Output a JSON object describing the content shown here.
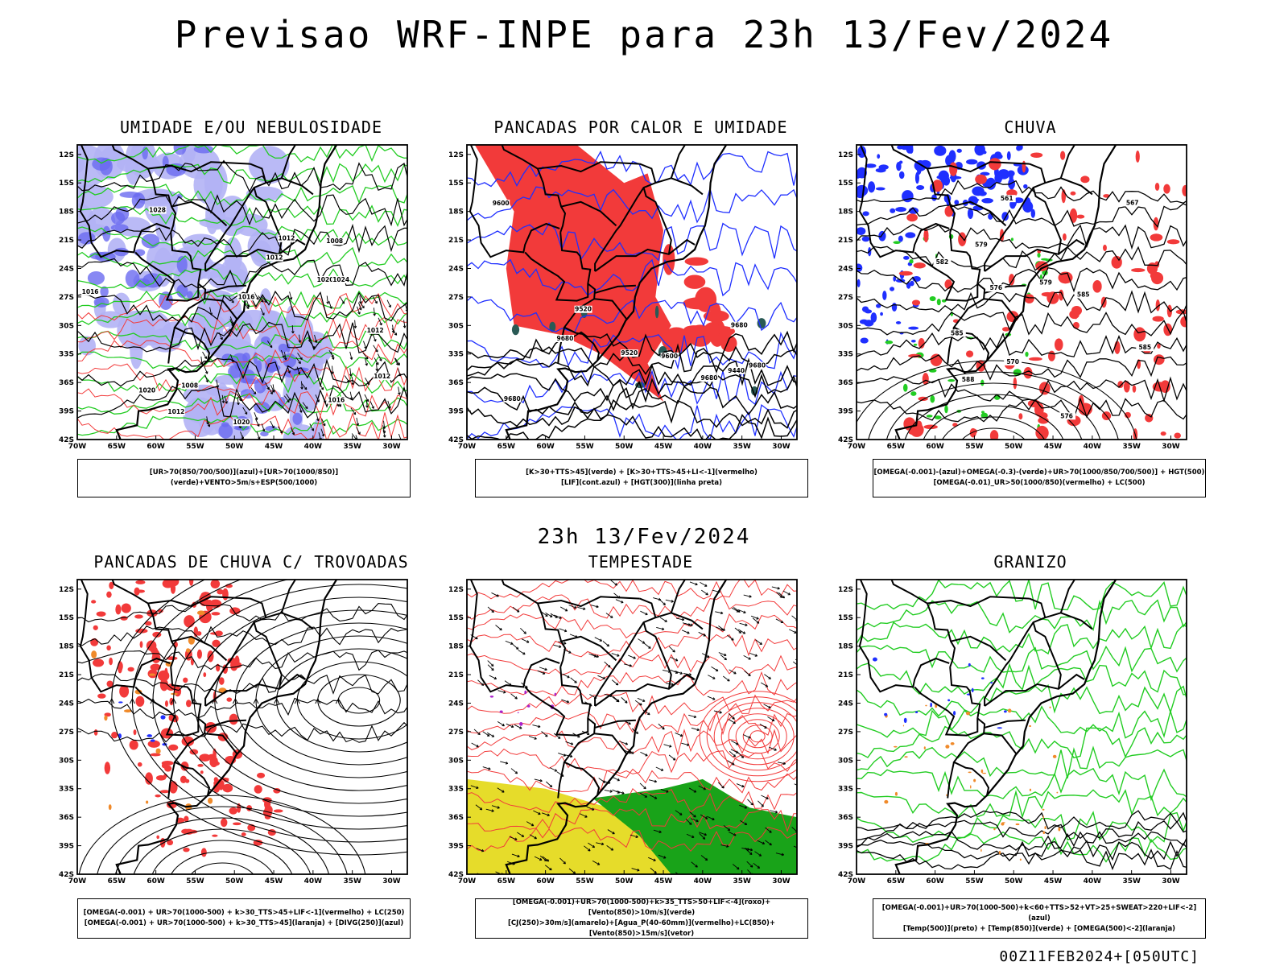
{
  "title": "Previsao WRF-INPE  para 23h 13/Fev/2024",
  "subtitle": "23h 13/Fev/2024",
  "footer": "00Z11FEB2024+[050UTC]",
  "axes": {
    "lat_labels": [
      "12S",
      "15S",
      "18S",
      "21S",
      "24S",
      "27S",
      "30S",
      "33S",
      "36S",
      "39S",
      "42S"
    ],
    "lon_labels": [
      "70W",
      "65W",
      "60W",
      "55W",
      "50W",
      "45W",
      "40W",
      "35W",
      "30W"
    ]
  },
  "colors": {
    "blue": "#1f2fff",
    "lightblue": "#b3b3f5",
    "green": "#22cc22",
    "red": "#f23a3a",
    "orange": "#f08a2a",
    "yellow": "#e6dc2a",
    "darkgreen": "#1a7a1a",
    "purple": "#aa22cc",
    "teal": "#2a5a55"
  },
  "panels": [
    {
      "title": "UMIDADE E/OU NEBULOSIDADE",
      "legend": [
        "[UR>70(850/700/500)](azul)+[UR>70(1000/850)](verde)+VENTO>5m/s+ESP(500/1000)"
      ],
      "contour_labels": [
        "1016",
        "1016",
        "1016",
        "1020",
        "1012",
        "1012",
        "1020",
        "1012",
        "1012",
        "1008",
        "1024",
        "1020",
        "1012",
        "1028",
        "1008"
      ]
    },
    {
      "title": "PANCADAS POR CALOR E UMIDADE",
      "legend": [
        "[K>30+TTS>45](verde) + [K>30+TTS>45+LI<-1](vermelho)",
        "[LIF](cont.azul) + [HGT(300)](linha preta)"
      ],
      "contour_labels": [
        "9680",
        "9680",
        "9680",
        "9680",
        "9680",
        "9600",
        "9520",
        "9440",
        "9600",
        "9520"
      ]
    },
    {
      "title": "CHUVA",
      "legend": [
        "[OMEGA(-0.001)-(azul)+OMEGA(-0.3)-(verde)+UR>70(1000/850/700/500)] + HGT(500)",
        "[OMEGA(-0.01)_UR>50(1000/850)(vermelho) + LC(500)"
      ],
      "contour_labels": [
        "588",
        "585",
        "585",
        "585",
        "582",
        "579",
        "576",
        "570",
        "567",
        "561",
        "579",
        "576"
      ]
    },
    {
      "title": "PANCADAS DE CHUVA C/ TROVOADAS",
      "legend": [
        "[OMEGA(-0.001) + UR>70(1000-500) + k>30_TTS>45+LIF<-1](vermelho) + LC(250)",
        "[OMEGA(-0.001) + UR>70(1000-500) + k>30_TTS>45](laranja) + [DIVG(250)](azul)"
      ],
      "contour_labels": []
    },
    {
      "title": "TEMPESTADE",
      "legend": [
        "[OMEGA(-0.001)+UR>70(1000-500)+k>35_TTS>50+LIF<-4](roxo)+[Vento(850)>10m/s](verde)",
        "[CJ(250)>30m/s](amarelo)+[Agua_P(40-60mm)](vermelho)+LC(850)+[Vento(850)>15m/s](vetor)"
      ],
      "contour_labels": []
    },
    {
      "title": "GRANIZO",
      "legend": [
        "[OMEGA(-0.001)+UR>70(1000-500)+k<60+TTS>52+VT>25+SWEAT>220+LIF<-2](azul)",
        "[Temp(500)](preto) + [Temp(850)](verde) + [OMEGA(500)<-2](laranja)"
      ],
      "contour_labels": []
    }
  ]
}
